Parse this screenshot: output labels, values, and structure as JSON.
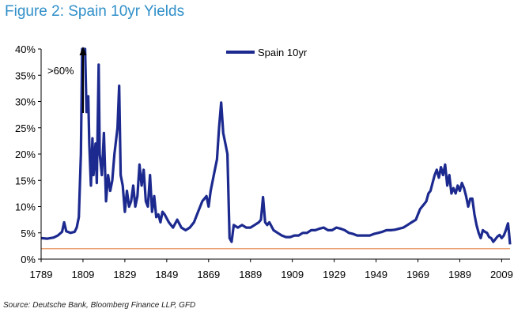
{
  "page": {
    "title": "Figure 2: Spain 10yr Yields",
    "source": "Source: Deutsche Bank, Bloomberg Finance LLP, GFD"
  },
  "colors": {
    "title": "#2f8fc9",
    "series": "#1c2a8f",
    "reference_line": "#e8a070",
    "axis": "#000000"
  },
  "chart_data": {
    "type": "line",
    "title": "",
    "xlabel": "",
    "ylabel": "",
    "xlim": [
      1789,
      2013
    ],
    "ylim": [
      0,
      40
    ],
    "grid": false,
    "legend_position": "top-center",
    "x_ticks": [
      "1789",
      "1809",
      "1829",
      "1849",
      "1869",
      "1889",
      "1909",
      "1929",
      "1949",
      "1969",
      "1989",
      "2009"
    ],
    "y_ticks": [
      "0%",
      "5%",
      "10%",
      "15%",
      "20%",
      "25%",
      "30%",
      "35%",
      "40%"
    ],
    "annotation": {
      "text": ">60%",
      "arrow": "up"
    },
    "reference_line": {
      "y": 2.0
    },
    "series": [
      {
        "name": "Spain 10yr",
        "points": [
          [
            1789,
            4.0
          ],
          [
            1792,
            3.9
          ],
          [
            1795,
            4.1
          ],
          [
            1797,
            4.5
          ],
          [
            1799,
            5.2
          ],
          [
            1800,
            7.0
          ],
          [
            1801,
            5.3
          ],
          [
            1803,
            5.0
          ],
          [
            1805,
            5.2
          ],
          [
            1806,
            6.0
          ],
          [
            1807,
            8.0
          ],
          [
            1808,
            20.0
          ],
          [
            1808.6,
            40.0
          ],
          [
            1810,
            40.0
          ],
          [
            1810.7,
            28.0
          ],
          [
            1811.5,
            31.0
          ],
          [
            1812,
            22.0
          ],
          [
            1812.8,
            14.0
          ],
          [
            1813.5,
            23.0
          ],
          [
            1814,
            16.0
          ],
          [
            1815,
            22.0
          ],
          [
            1815.6,
            14.5
          ],
          [
            1816.5,
            37.0
          ],
          [
            1817,
            20.0
          ],
          [
            1818,
            16.0
          ],
          [
            1819,
            24.0
          ],
          [
            1820,
            11.0
          ],
          [
            1821,
            16.0
          ],
          [
            1822,
            13.0
          ],
          [
            1823,
            15.0
          ],
          [
            1824,
            20.0
          ],
          [
            1825.5,
            25.0
          ],
          [
            1826.3,
            33.0
          ],
          [
            1827,
            16.0
          ],
          [
            1828,
            14.0
          ],
          [
            1829,
            9.0
          ],
          [
            1830,
            13.0
          ],
          [
            1831,
            10.0
          ],
          [
            1832,
            11.0
          ],
          [
            1833,
            14.0
          ],
          [
            1834,
            10.0
          ],
          [
            1835,
            12.0
          ],
          [
            1836,
            18.0
          ],
          [
            1837,
            14.0
          ],
          [
            1838,
            17.0
          ],
          [
            1839,
            11.0
          ],
          [
            1840,
            10.0
          ],
          [
            1841,
            16.0
          ],
          [
            1842,
            9.0
          ],
          [
            1843,
            12.0
          ],
          [
            1844,
            8.0
          ],
          [
            1845,
            8.5
          ],
          [
            1846,
            7.0
          ],
          [
            1847,
            9.0
          ],
          [
            1848,
            8.5
          ],
          [
            1850,
            7.0
          ],
          [
            1852,
            6.0
          ],
          [
            1854,
            7.5
          ],
          [
            1856,
            6.0
          ],
          [
            1858,
            5.5
          ],
          [
            1860,
            6.0
          ],
          [
            1862,
            7.0
          ],
          [
            1864,
            9.0
          ],
          [
            1866,
            11.0
          ],
          [
            1868,
            12.0
          ],
          [
            1869,
            10.0
          ],
          [
            1870,
            13.0
          ],
          [
            1872,
            17.0
          ],
          [
            1873,
            19.0
          ],
          [
            1874,
            25.0
          ],
          [
            1875,
            29.8
          ],
          [
            1876,
            24.0
          ],
          [
            1877,
            22.0
          ],
          [
            1878,
            20.0
          ],
          [
            1879,
            4.0
          ],
          [
            1880,
            3.3
          ],
          [
            1881,
            6.5
          ],
          [
            1883,
            6.0
          ],
          [
            1885,
            6.5
          ],
          [
            1887,
            6.0
          ],
          [
            1889,
            6.0
          ],
          [
            1891,
            6.5
          ],
          [
            1893,
            7.0
          ],
          [
            1894,
            7.5
          ],
          [
            1895,
            11.8
          ],
          [
            1896,
            7.0
          ],
          [
            1897,
            6.5
          ],
          [
            1898,
            7.0
          ],
          [
            1900,
            5.5
          ],
          [
            1902,
            5.0
          ],
          [
            1904,
            4.5
          ],
          [
            1906,
            4.2
          ],
          [
            1908,
            4.2
          ],
          [
            1910,
            4.5
          ],
          [
            1912,
            4.5
          ],
          [
            1914,
            5.0
          ],
          [
            1916,
            5.0
          ],
          [
            1918,
            5.5
          ],
          [
            1920,
            5.5
          ],
          [
            1922,
            5.8
          ],
          [
            1924,
            6.0
          ],
          [
            1926,
            5.5
          ],
          [
            1928,
            5.5
          ],
          [
            1930,
            6.0
          ],
          [
            1932,
            5.8
          ],
          [
            1934,
            5.5
          ],
          [
            1936,
            5.0
          ],
          [
            1938,
            4.8
          ],
          [
            1940,
            4.5
          ],
          [
            1942,
            4.5
          ],
          [
            1944,
            4.5
          ],
          [
            1946,
            4.5
          ],
          [
            1948,
            4.8
          ],
          [
            1950,
            5.0
          ],
          [
            1952,
            5.2
          ],
          [
            1954,
            5.5
          ],
          [
            1956,
            5.5
          ],
          [
            1958,
            5.6
          ],
          [
            1960,
            5.8
          ],
          [
            1962,
            6.0
          ],
          [
            1964,
            6.5
          ],
          [
            1966,
            7.0
          ],
          [
            1968,
            7.5
          ],
          [
            1969,
            8.5
          ],
          [
            1970,
            9.5
          ],
          [
            1971,
            10.0
          ],
          [
            1972,
            10.5
          ],
          [
            1973,
            11.0
          ],
          [
            1974,
            12.5
          ],
          [
            1975,
            13.0
          ],
          [
            1976,
            14.5
          ],
          [
            1977,
            16.0
          ],
          [
            1978,
            17.0
          ],
          [
            1979,
            15.5
          ],
          [
            1980,
            17.5
          ],
          [
            1981,
            16.0
          ],
          [
            1982,
            18.0
          ],
          [
            1983,
            14.0
          ],
          [
            1984,
            16.0
          ],
          [
            1985,
            12.5
          ],
          [
            1986,
            13.5
          ],
          [
            1987,
            12.5
          ],
          [
            1988,
            14.0
          ],
          [
            1989,
            13.0
          ],
          [
            1990,
            14.5
          ],
          [
            1991,
            13.5
          ],
          [
            1992,
            12.0
          ],
          [
            1993,
            10.0
          ],
          [
            1994,
            11.5
          ],
          [
            1995,
            11.5
          ],
          [
            1996,
            8.5
          ],
          [
            1997,
            6.5
          ],
          [
            1998,
            5.0
          ],
          [
            1999,
            4.0
          ],
          [
            2000,
            5.5
          ],
          [
            2001,
            5.2
          ],
          [
            2002,
            5.0
          ],
          [
            2003,
            4.2
          ],
          [
            2004,
            4.0
          ],
          [
            2005,
            3.3
          ],
          [
            2006,
            3.8
          ],
          [
            2007,
            4.3
          ],
          [
            2008,
            4.6
          ],
          [
            2009,
            4.0
          ],
          [
            2010,
            4.5
          ],
          [
            2011,
            5.5
          ],
          [
            2012,
            6.8
          ],
          [
            2012.5,
            5.0
          ],
          [
            2013,
            2.8
          ]
        ]
      }
    ]
  }
}
